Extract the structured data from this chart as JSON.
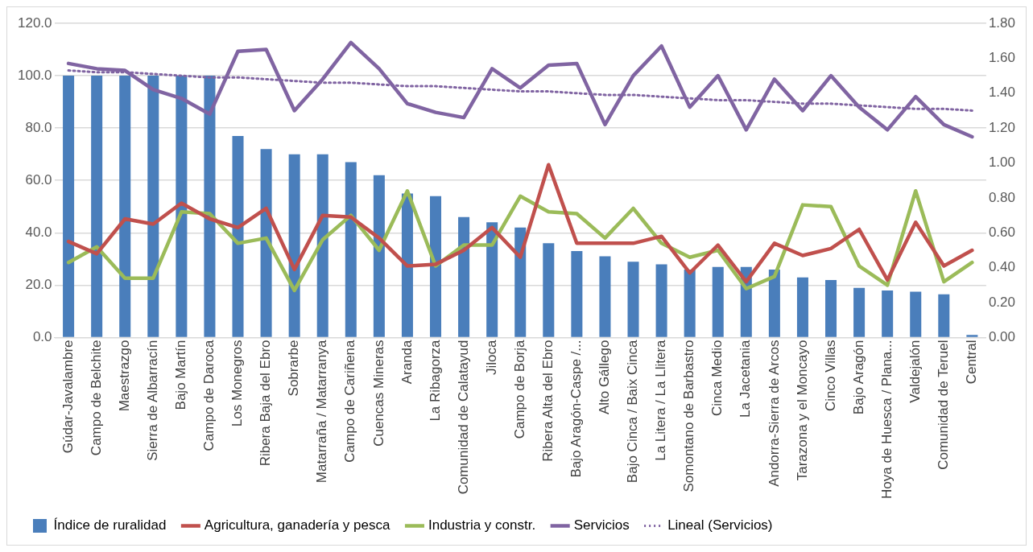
{
  "chart_data": {
    "type": "bar",
    "categories": [
      "Gúdar-Javalambre",
      "Campo de Belchite",
      "Maestrazgo",
      "Sierra de Albarracín",
      "Bajo Martín",
      "Campo de Daroca",
      "Los Monegros",
      "Ribera Baja del Ebro",
      "Sobrarbe",
      "Matarraña / Matarranya",
      "Campo de Cariñena",
      "Cuencas Mineras",
      "Aranda",
      "La Ribagorza",
      "Comunidad de Calatayud",
      "Jiloca",
      "Campo de Borja",
      "Ribera Alta del Ebro",
      "Bajo Aragón-Caspe /...",
      "Alto Gállego",
      "Bajo Cinca / Baix Cinca",
      "La Litera / La Llitera",
      "Somontano de Barbastro",
      "Cinca Medio",
      "La Jacetania",
      "Andorra-Sierra de Arcos",
      "Tarazona y el Moncayo",
      "Cinco Villas",
      "Bajo Aragón",
      "Hoya de Huesca / Plana...",
      "Valdejalón",
      "Comunidad de Teruel",
      "Central"
    ],
    "series": [
      {
        "name": "Índice de ruralidad",
        "color": "#4a7ebb",
        "values": [
          100,
          100,
          100,
          100,
          100,
          100,
          77,
          72,
          70,
          70,
          67,
          62,
          55,
          54,
          46,
          44,
          42,
          36,
          33,
          31,
          29,
          28,
          26,
          27,
          27,
          26,
          23,
          22,
          19,
          18,
          17.5,
          16.5,
          1
        ]
      },
      {
        "name": "Agricultura, ganadería y pesca",
        "type": "line",
        "axis": "y2",
        "color": "#c0504d",
        "line_style": "solid",
        "values": [
          0.55,
          0.48,
          0.68,
          0.65,
          0.77,
          0.68,
          0.63,
          0.74,
          0.39,
          0.7,
          0.69,
          0.57,
          0.41,
          0.42,
          0.5,
          0.63,
          0.46,
          0.99,
          0.54,
          0.54,
          0.54,
          0.58,
          0.37,
          0.53,
          0.32,
          0.54,
          0.47,
          0.51,
          0.62,
          0.33,
          0.66,
          0.41,
          0.5
        ]
      },
      {
        "name": "Industria y constr.",
        "type": "line",
        "axis": "y2",
        "color": "#9bbb59",
        "line_style": "solid",
        "values": [
          0.43,
          0.52,
          0.34,
          0.34,
          0.72,
          0.71,
          0.54,
          0.57,
          0.27,
          0.56,
          0.7,
          0.5,
          0.84,
          0.41,
          0.53,
          0.53,
          0.81,
          0.72,
          0.71,
          0.57,
          0.74,
          0.54,
          0.46,
          0.5,
          0.28,
          0.35,
          0.76,
          0.75,
          0.41,
          0.3,
          0.84,
          0.32,
          0.43
        ]
      },
      {
        "name": "Servicios",
        "type": "line",
        "axis": "y2",
        "color": "#8064a2",
        "line_style": "solid",
        "values": [
          1.57,
          1.54,
          1.53,
          1.42,
          1.37,
          1.28,
          1.64,
          1.65,
          1.3,
          1.48,
          1.69,
          1.54,
          1.34,
          1.29,
          1.26,
          1.54,
          1.43,
          1.56,
          1.57,
          1.22,
          1.5,
          1.67,
          1.32,
          1.5,
          1.19,
          1.48,
          1.3,
          1.5,
          1.32,
          1.19,
          1.38,
          1.22,
          1.15
        ]
      },
      {
        "name": "Lineal (Servicios)",
        "type": "line",
        "axis": "y2",
        "color": "#8064a2",
        "line_style": "dotted",
        "values": [
          1.53,
          1.52,
          1.52,
          1.51,
          1.5,
          1.49,
          1.49,
          1.48,
          1.47,
          1.46,
          1.46,
          1.45,
          1.44,
          1.44,
          1.43,
          1.42,
          1.41,
          1.41,
          1.4,
          1.39,
          1.39,
          1.38,
          1.37,
          1.36,
          1.36,
          1.35,
          1.34,
          1.34,
          1.33,
          1.32,
          1.31,
          1.31,
          1.3
        ]
      }
    ],
    "ylim": [
      0,
      120
    ],
    "yticks": [
      {
        "value": 0,
        "label": "0.0"
      },
      {
        "value": 20,
        "label": "20.0"
      },
      {
        "value": 40,
        "label": "40.0"
      },
      {
        "value": 60,
        "label": "60.0"
      },
      {
        "value": 80,
        "label": "80.0"
      },
      {
        "value": 100,
        "label": "100.0"
      },
      {
        "value": 120,
        "label": "120.0"
      }
    ],
    "y2lim": [
      0,
      1.8
    ],
    "y2ticks": [
      {
        "value": 0,
        "label": "0.00"
      },
      {
        "value": 0.2,
        "label": "0.20"
      },
      {
        "value": 0.4,
        "label": "0.40"
      },
      {
        "value": 0.6,
        "label": "0.60"
      },
      {
        "value": 0.8,
        "label": "0.80"
      },
      {
        "value": 1,
        "label": "1.00"
      },
      {
        "value": 1.2,
        "label": "1.20"
      },
      {
        "value": 1.4,
        "label": "1.40"
      },
      {
        "value": 1.6,
        "label": "1.60"
      },
      {
        "value": 1.8,
        "label": "1.80"
      }
    ],
    "grid": "y",
    "legend": "bottom",
    "marker": "none"
  }
}
